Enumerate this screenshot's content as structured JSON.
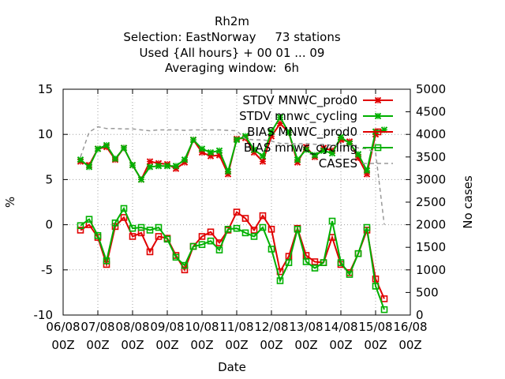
{
  "chart_data": {
    "type": "line",
    "title_lines": [
      "Rh2m",
      "Selection: EastNorway     73 stations",
      "Used {All hours} + 00 01 ... 09",
      "Averaging window:  6h"
    ],
    "xlabel": "Date",
    "ylabel": "%",
    "y2label": "No cases",
    "xlim": [
      0,
      20
    ],
    "ylim": [
      -10,
      15
    ],
    "y2lim": [
      0,
      5000
    ],
    "x_ticks": [
      {
        "x": 0,
        "l1": "06/08",
        "l2": "00Z"
      },
      {
        "x": 2,
        "l1": "07/08",
        "l2": "00Z"
      },
      {
        "x": 4,
        "l1": "08/08",
        "l2": "00Z"
      },
      {
        "x": 6,
        "l1": "09/08",
        "l2": "00Z"
      },
      {
        "x": 8,
        "l1": "10/08",
        "l2": "00Z"
      },
      {
        "x": 10,
        "l1": "11/08",
        "l2": "00Z"
      },
      {
        "x": 12,
        "l1": "12/08",
        "l2": "00Z"
      },
      {
        "x": 14,
        "l1": "13/08",
        "l2": "00Z"
      },
      {
        "x": 16,
        "l1": "14/08",
        "l2": "00Z"
      },
      {
        "x": 18,
        "l1": "15/08",
        "l2": "00Z"
      },
      {
        "x": 20,
        "l1": "16/08",
        "l2": "00Z"
      }
    ],
    "y_ticks": [
      "-10",
      "-5",
      "0",
      "5",
      "10",
      "15"
    ],
    "y2_ticks": [
      "0",
      "500",
      "1000",
      "1500",
      "2000",
      "2500",
      "3000",
      "3500",
      "4000",
      "4500",
      "5000"
    ],
    "grid": true,
    "legend_position": "top-right",
    "x": [
      1,
      1.5,
      2,
      2.5,
      3,
      3.5,
      4,
      4.5,
      5,
      5.5,
      6,
      6.5,
      7,
      7.5,
      8,
      8.5,
      9,
      9.5,
      10,
      10.5,
      11,
      11.5,
      12,
      12.5,
      13,
      13.5,
      14,
      14.5,
      15,
      15.5,
      16,
      16.5,
      17,
      17.5,
      18,
      18.5,
      19
    ],
    "series": [
      {
        "name": "STDV MNWC_prod0",
        "color": "#e00000",
        "marker": "x",
        "axis": "y1",
        "values": [
          7.0,
          6.6,
          8.4,
          8.6,
          7.2,
          8.5,
          6.6,
          5.0,
          7.0,
          6.8,
          6.7,
          6.2,
          6.9,
          9.4,
          8.0,
          7.6,
          7.7,
          5.6,
          9.5,
          9.6,
          8.0,
          7.0,
          9.8,
          11.2,
          10.2,
          6.9,
          8.6,
          7.5,
          8.5,
          8.2,
          9.4,
          9.2,
          7.4,
          5.6,
          10.0,
          null,
          null
        ]
      },
      {
        "name": "STDV mnwc_cycling",
        "color": "#00b000",
        "marker": "x",
        "axis": "y1",
        "values": [
          7.2,
          6.4,
          8.4,
          8.8,
          7.3,
          8.5,
          6.6,
          5.0,
          6.4,
          6.5,
          6.5,
          6.5,
          7.2,
          9.4,
          8.4,
          8.0,
          8.2,
          5.9,
          9.4,
          9.8,
          8.3,
          7.6,
          10.3,
          11.9,
          10.2,
          7.2,
          8.3,
          7.7,
          8.2,
          7.9,
          9.7,
          9.0,
          7.8,
          6.0,
          10.3,
          10.5,
          null
        ]
      },
      {
        "name": "BIAS MNWC_prod0",
        "color": "#e00000",
        "marker": "square",
        "axis": "y1",
        "values": [
          -0.6,
          0.0,
          -1.4,
          -4.4,
          -0.2,
          0.8,
          -1.3,
          -0.9,
          -3.0,
          -1.3,
          -1.5,
          -3.4,
          -5.0,
          -2.4,
          -1.3,
          -0.8,
          -2.0,
          -0.6,
          1.4,
          0.7,
          -0.6,
          1.0,
          -0.5,
          -5.2,
          -3.5,
          -0.4,
          -3.4,
          -4.1,
          -4.2,
          -1.4,
          -4.4,
          -5.3,
          -3.2,
          -0.6,
          -6.0,
          -8.2,
          null
        ]
      },
      {
        "name": "BIAS mnwc_cycling",
        "color": "#00b000",
        "marker": "square",
        "axis": "y1",
        "values": [
          -0.1,
          0.6,
          -1.2,
          -4.0,
          0.2,
          1.8,
          -0.4,
          -0.3,
          -0.6,
          -0.3,
          -1.6,
          -3.6,
          -4.5,
          -2.4,
          -2.2,
          -1.8,
          -2.8,
          -0.5,
          -0.4,
          -0.9,
          -1.3,
          -0.3,
          -2.7,
          -6.2,
          -4.2,
          -0.5,
          -4.1,
          -4.8,
          -4.2,
          0.4,
          -4.2,
          -5.5,
          -3.2,
          -0.3,
          -6.8,
          -9.4,
          null
        ]
      },
      {
        "name": "CASES",
        "color": "#999999",
        "style": "dashed",
        "axis": "y2",
        "values": [
          3500,
          4050,
          4170,
          4130,
          4130,
          4120,
          4120,
          4100,
          4080,
          4100,
          4100,
          4100,
          4090,
          4100,
          4100,
          4100,
          4100,
          4090,
          4080,
          3900,
          3880,
          3880,
          3850,
          3800,
          3800,
          3790,
          3800,
          3780,
          3780,
          3760,
          3750,
          3750,
          3700,
          3680,
          3600,
          2000,
          null
        ]
      }
    ]
  }
}
